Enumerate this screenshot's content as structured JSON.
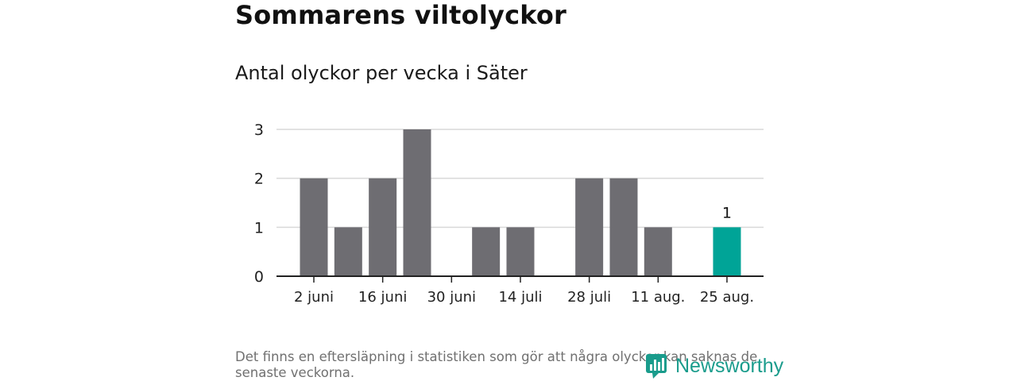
{
  "header": {
    "title": "Sommarens viltolyckor",
    "subtitle": "Antal olyckor per vecka i Säter"
  },
  "footnote": "Det finns en eftersläpning i statistiken som gör att några olyckor kan saknas de senaste veckorna.",
  "brand": {
    "name": "Newsworthy"
  },
  "colors": {
    "bar": "#6e6d72",
    "highlight": "#00a497",
    "grid": "#d9d9d9",
    "axis": "#222222"
  },
  "chart_data": {
    "type": "bar",
    "x": [
      "2 juni",
      "9 juni",
      "16 juni",
      "23 juni",
      "30 juni",
      "7 juli",
      "14 juli",
      "21 juli",
      "28 juli",
      "4 aug.",
      "11 aug.",
      "18 aug.",
      "25 aug."
    ],
    "x_tick_labels": [
      "2 juni",
      "16 juni",
      "30 juni",
      "14 juli",
      "28 juli",
      "11 aug.",
      "25 aug."
    ],
    "values": [
      2,
      1,
      2,
      3,
      0,
      1,
      1,
      0,
      2,
      2,
      1,
      0,
      1
    ],
    "highlight_index": 12,
    "data_labels": [
      {
        "index": 12,
        "text": "1"
      }
    ],
    "yticks": [
      0,
      1,
      2,
      3
    ],
    "ylim": [
      0,
      3
    ],
    "grid": true
  }
}
